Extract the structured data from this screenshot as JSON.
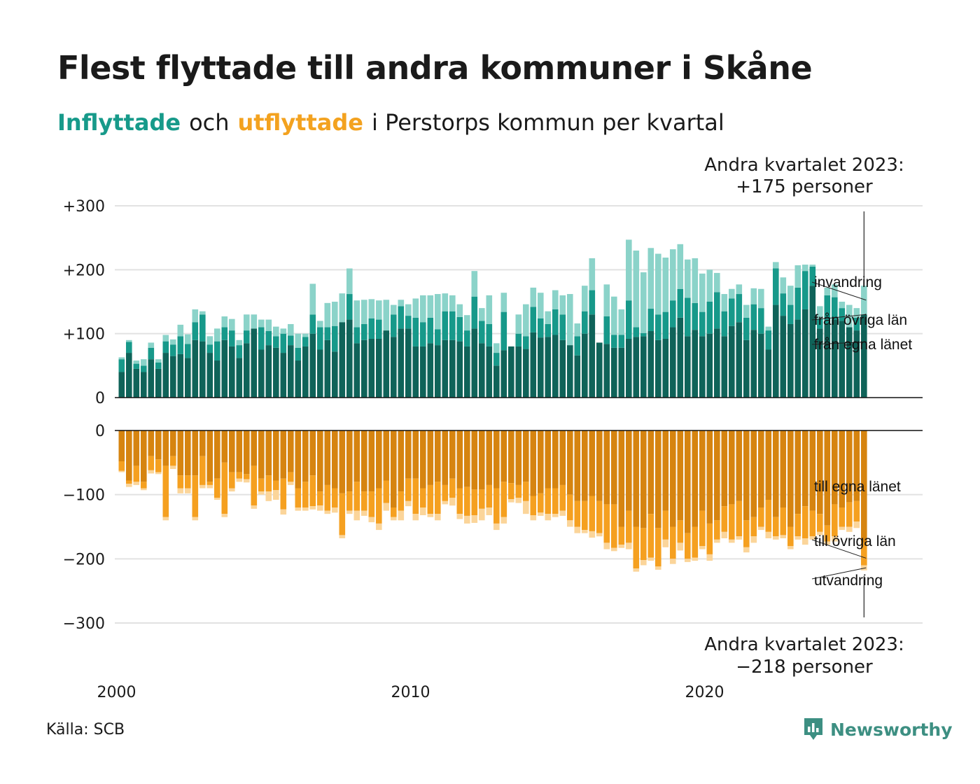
{
  "header": {
    "title": "Flest flyttade till andra kommuner i Skåne",
    "subtitle_in": "Inflyttade",
    "subtitle_mid": "och",
    "subtitle_out": "utflyttade",
    "subtitle_rest": "i Perstorps kommun per kvartal"
  },
  "footer": {
    "source": "Källa: SCB",
    "logo": "Newsworthy"
  },
  "colors": {
    "in_own": "#0f6359",
    "in_other": "#17998a",
    "in_immigration": "#8bd3c9",
    "out_own": "#d68410",
    "out_other": "#f5a020",
    "out_emigration": "#fbd59a"
  },
  "chart_data": {
    "type": "bar",
    "stacked": true,
    "x_start": "2000 Q1",
    "x_end": "2023 Q2",
    "x_ticks": [
      "2000",
      "2010",
      "2020"
    ],
    "y_ticks_top": [
      "+300",
      "+200",
      "+100",
      "0"
    ],
    "y_ticks_bottom": [
      "0",
      "−100",
      "−200",
      "−300"
    ],
    "ylim_top": [
      0,
      300
    ],
    "ylim_bottom": [
      -300,
      0
    ],
    "grid": true,
    "annotation_top": {
      "line1": "Andra kvartalet 2023:",
      "line2": "+175 personer"
    },
    "annotation_bottom": {
      "line1": "Andra kvartalet 2023:",
      "line2": "−218 personer"
    },
    "series_labels_in": [
      "invandring",
      "från övriga län",
      "från egna länet"
    ],
    "series_labels_out": [
      "till egna länet",
      "till övriga län",
      "utvandring"
    ],
    "inflyttade": {
      "fran_egna_lanet": [
        40,
        70,
        45,
        40,
        60,
        45,
        70,
        65,
        68,
        62,
        90,
        88,
        70,
        58,
        90,
        80,
        62,
        85,
        108,
        75,
        82,
        78,
        70,
        82,
        58,
        80,
        100,
        75,
        90,
        72,
        118,
        122,
        85,
        90,
        92,
        92,
        105,
        95,
        108,
        108,
        80,
        80,
        85,
        82,
        90,
        90,
        88,
        80,
        108,
        85,
        80,
        50,
        74,
        80,
        80,
        76,
        102,
        94,
        95,
        98,
        90,
        82,
        66,
        100,
        130,
        86,
        84,
        78,
        78,
        92,
        95,
        96,
        104,
        90,
        92,
        110,
        125,
        96,
        106,
        96,
        100,
        108,
        96,
        112,
        118,
        90,
        106,
        100,
        75,
        145,
        128,
        115,
        122,
        138,
        175,
        108,
        115,
        122,
        120,
        110,
        105,
        130
      ],
      "fran_ovriga_lan": [
        20,
        17,
        8,
        10,
        18,
        10,
        18,
        18,
        28,
        22,
        28,
        42,
        13,
        30,
        20,
        25,
        20,
        20,
        0,
        35,
        22,
        18,
        30,
        15,
        20,
        15,
        30,
        35,
        20,
        40,
        0,
        40,
        25,
        25,
        32,
        30,
        0,
        35,
        35,
        20,
        45,
        38,
        40,
        25,
        45,
        45,
        38,
        25,
        50,
        35,
        35,
        20,
        60,
        0,
        20,
        20,
        40,
        30,
        20,
        40,
        40,
        0,
        30,
        35,
        38,
        0,
        43,
        20,
        20,
        60,
        15,
        5,
        35,
        40,
        42,
        42,
        45,
        60,
        42,
        38,
        50,
        57,
        39,
        43,
        44,
        35,
        40,
        40,
        30,
        57,
        35,
        30,
        50,
        60,
        30,
        15,
        45,
        35,
        20,
        0,
        20,
        0
      ],
      "invandring": [
        3,
        3,
        5,
        10,
        8,
        5,
        10,
        8,
        18,
        15,
        20,
        5,
        13,
        20,
        17,
        18,
        8,
        25,
        22,
        12,
        18,
        15,
        8,
        18,
        22,
        5,
        48,
        10,
        38,
        38,
        45,
        40,
        42,
        38,
        30,
        30,
        48,
        15,
        10,
        18,
        30,
        42,
        35,
        55,
        28,
        25,
        20,
        24,
        40,
        20,
        45,
        15,
        30,
        0,
        30,
        50,
        30,
        40,
        20,
        30,
        30,
        80,
        20,
        40,
        50,
        0,
        50,
        60,
        40,
        95,
        120,
        95,
        95,
        95,
        85,
        80,
        70,
        60,
        70,
        60,
        50,
        30,
        27,
        15,
        15,
        20,
        25,
        30,
        6,
        10,
        25,
        30,
        35,
        10,
        3,
        20,
        12,
        20,
        10,
        35,
        15,
        45
      ]
    },
    "utflyttade": {
      "till_egna_lanet": [
        -48,
        -78,
        -55,
        -80,
        -40,
        -45,
        -55,
        -40,
        -70,
        -70,
        -70,
        -40,
        -80,
        -75,
        -50,
        -65,
        -65,
        -68,
        -55,
        -75,
        -70,
        -78,
        -75,
        -65,
        -90,
        -80,
        -70,
        -95,
        -85,
        -90,
        -98,
        -95,
        -80,
        -95,
        -95,
        -90,
        -78,
        -120,
        -95,
        -75,
        -75,
        -90,
        -85,
        -80,
        -85,
        -75,
        -90,
        -88,
        -92,
        -92,
        -85,
        -90,
        -80,
        -82,
        -85,
        -80,
        -102,
        -98,
        -90,
        -90,
        -85,
        -100,
        -110,
        -110,
        -102,
        -110,
        -115,
        -115,
        -150,
        -125,
        -150,
        -152,
        -130,
        -152,
        -125,
        -150,
        -140,
        -160,
        -150,
        -125,
        -145,
        -140,
        -118,
        -115,
        -110,
        -140,
        -135,
        -120,
        -108,
        -135,
        -120,
        -150,
        -130,
        -118,
        -125,
        -130,
        -148,
        -115,
        -120,
        -112,
        -110,
        -175
      ],
      "till_ovriga_lan": [
        -15,
        -5,
        -25,
        -10,
        -22,
        -20,
        -80,
        -15,
        -20,
        -20,
        -65,
        -45,
        -5,
        -30,
        -80,
        -25,
        -10,
        -8,
        -62,
        -20,
        -25,
        -15,
        -48,
        -15,
        -30,
        -40,
        -48,
        -22,
        -40,
        -30,
        -65,
        -30,
        -45,
        -30,
        -40,
        -55,
        -35,
        -15,
        -30,
        -35,
        -55,
        -30,
        -45,
        -50,
        -25,
        -30,
        -40,
        -45,
        -40,
        -30,
        -35,
        -55,
        -55,
        -25,
        -20,
        -30,
        -30,
        -30,
        -40,
        -40,
        -40,
        -40,
        -40,
        -45,
        -55,
        -50,
        -60,
        -68,
        -28,
        -50,
        -65,
        -50,
        -68,
        -60,
        -45,
        -50,
        -35,
        -40,
        -48,
        -55,
        -48,
        -30,
        -40,
        -55,
        -55,
        -42,
        -30,
        -30,
        -50,
        -30,
        -43,
        -30,
        -35,
        -50,
        -40,
        -28,
        -25,
        -50,
        -30,
        -38,
        -32,
        -35
      ],
      "utvandring": [
        -2,
        -5,
        -5,
        -3,
        -5,
        -3,
        -5,
        -5,
        -8,
        -8,
        -5,
        -5,
        -5,
        -3,
        -5,
        -5,
        -5,
        -5,
        -5,
        -5,
        -15,
        -15,
        -8,
        -5,
        -5,
        -5,
        -5,
        -8,
        -5,
        -8,
        -5,
        -5,
        -15,
        -8,
        -8,
        -10,
        -12,
        -5,
        -15,
        -8,
        -10,
        -12,
        -5,
        -10,
        -5,
        -12,
        -8,
        -12,
        -12,
        -18,
        -12,
        -10,
        -10,
        -5,
        -8,
        -20,
        -8,
        -5,
        -10,
        -5,
        -8,
        -10,
        -10,
        -5,
        -10,
        -5,
        -10,
        -5,
        -5,
        -10,
        -5,
        -8,
        -5,
        -5,
        -12,
        -8,
        -12,
        -5,
        -5,
        -5,
        -10,
        -5,
        -10,
        -5,
        -5,
        -8,
        -10,
        -5,
        -10,
        -5,
        -5,
        -5,
        -5,
        -10,
        -5,
        -5,
        -5,
        -8,
        -5,
        -8,
        -10,
        -8
      ]
    }
  }
}
